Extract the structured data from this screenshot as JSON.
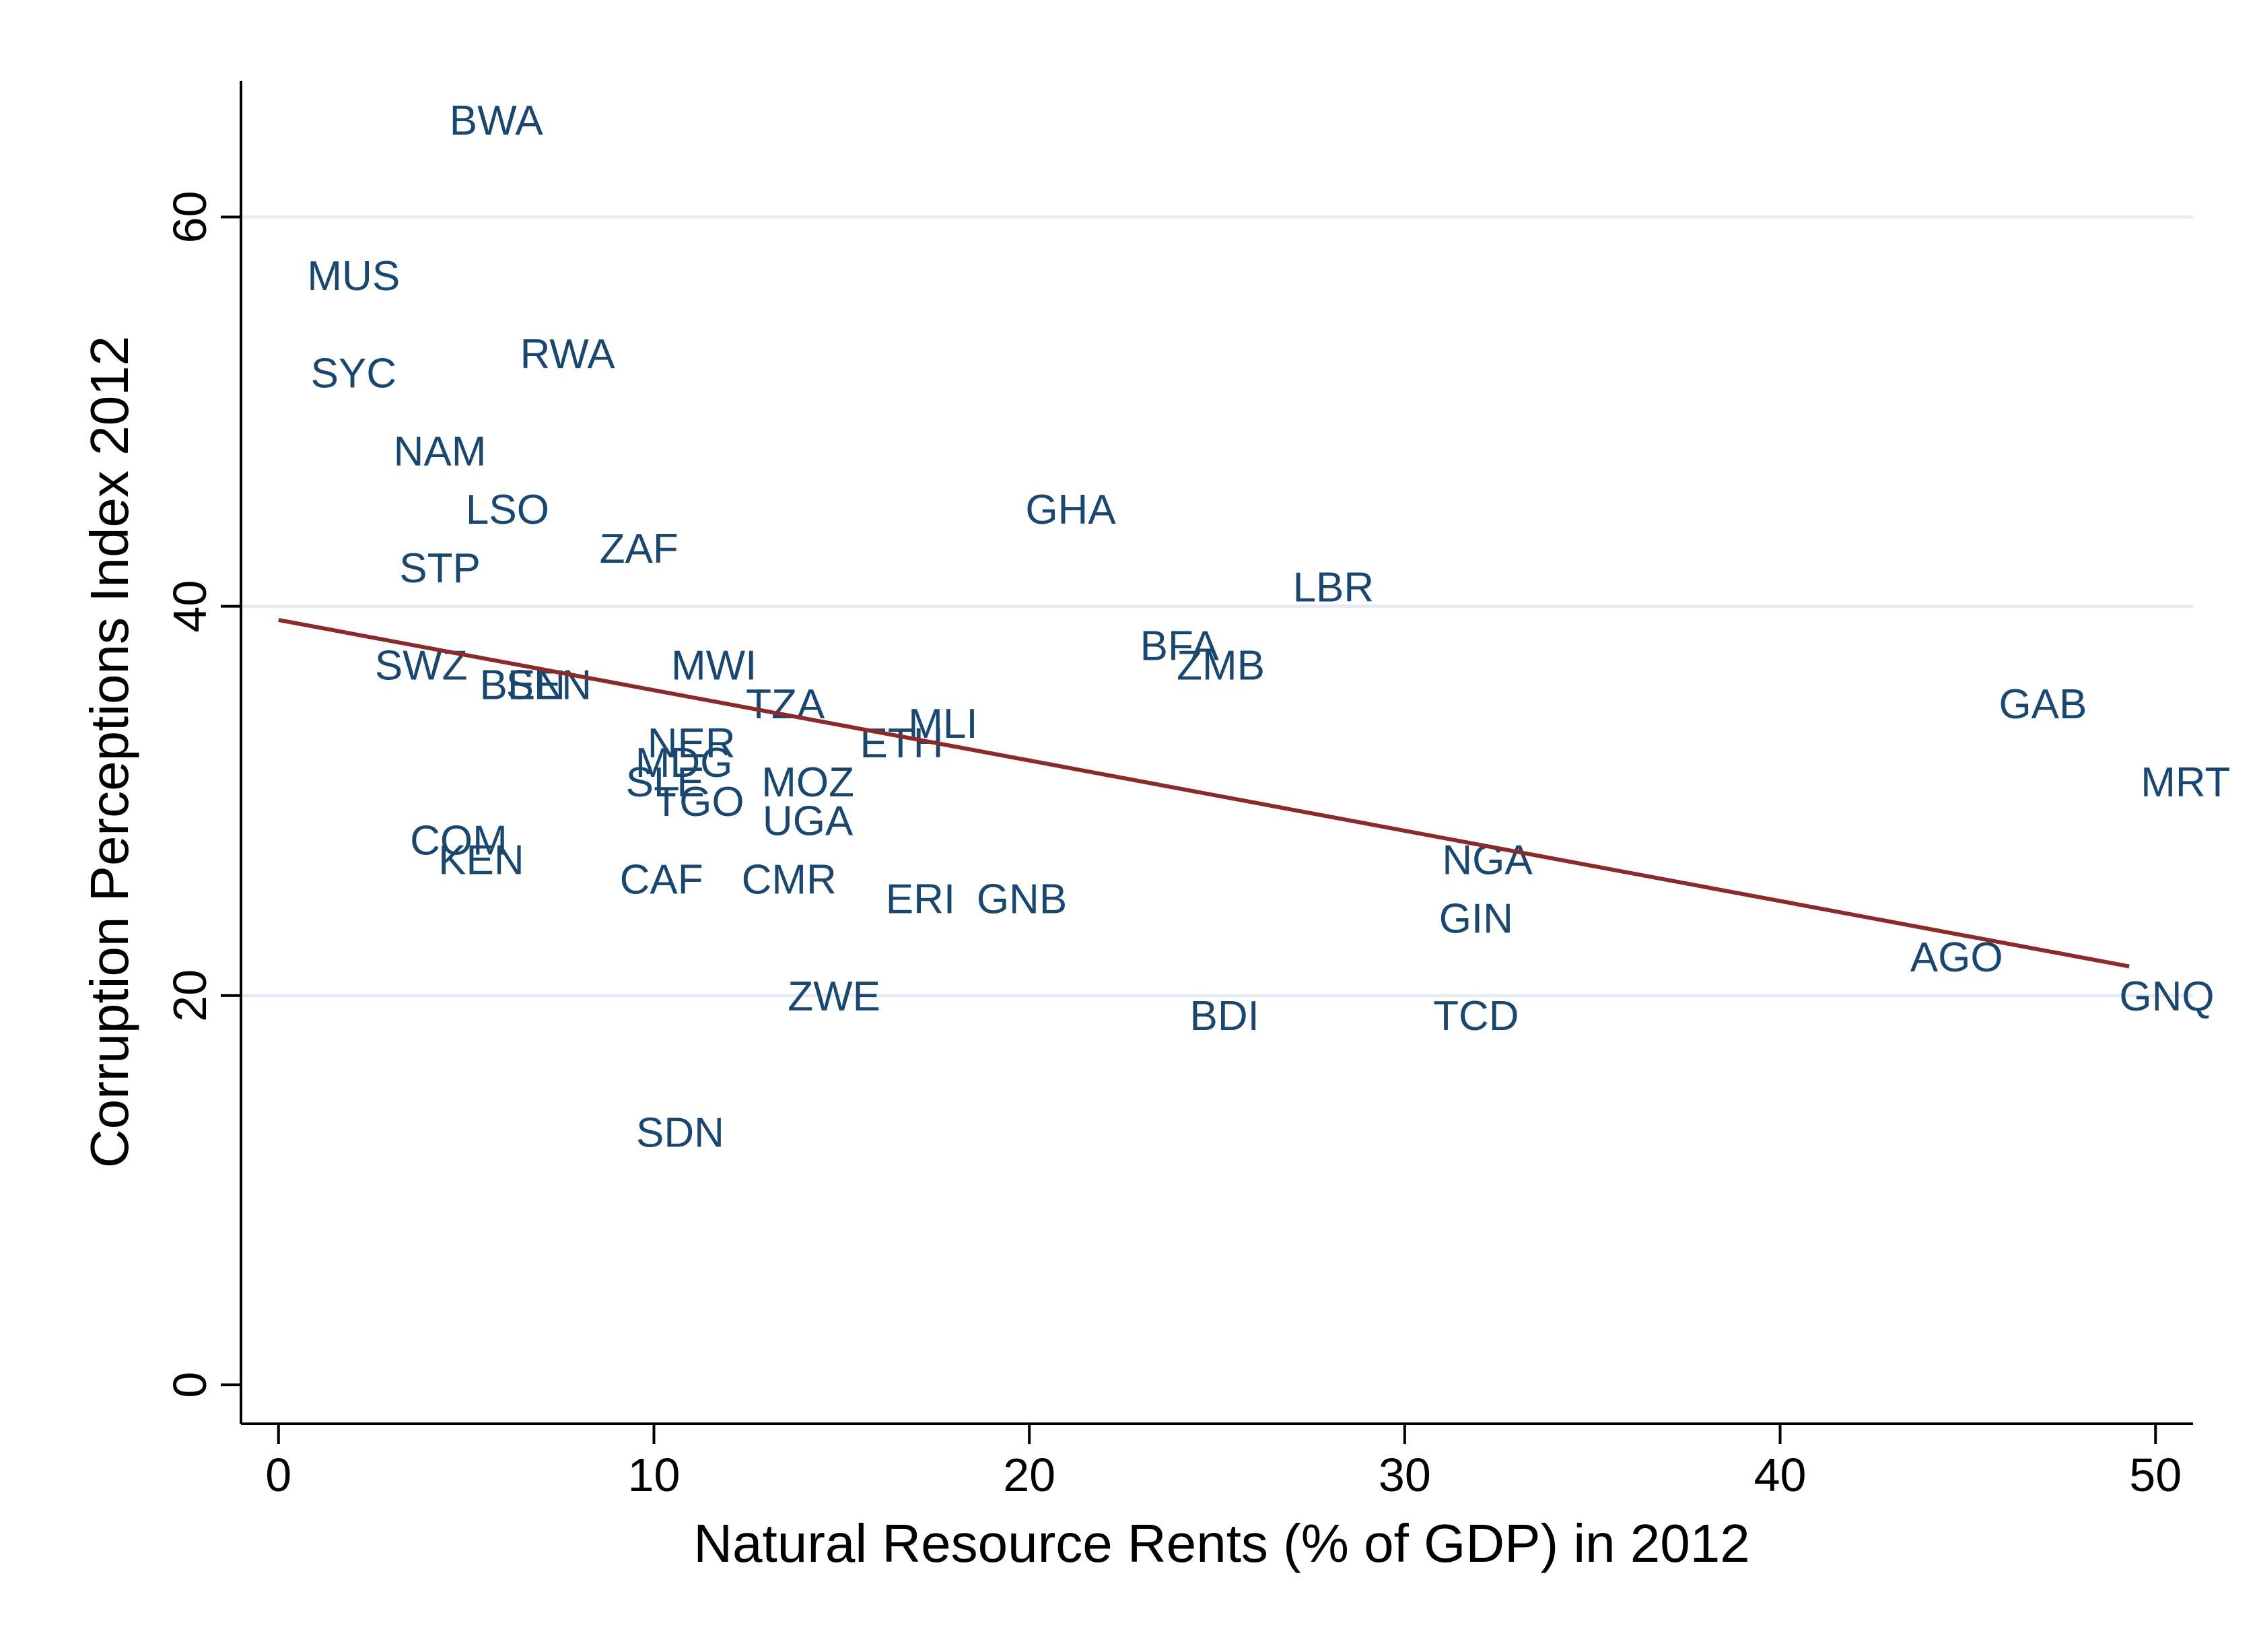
{
  "chart_data": {
    "type": "scatter",
    "title": "",
    "xlabel": "Natural Resource Rents (% of GDP) in 2012",
    "ylabel": "Corruption Perceptions Index 2012",
    "xlim": [
      -1,
      51
    ],
    "ylim": [
      -2,
      67
    ],
    "x_ticks": [
      0,
      10,
      20,
      30,
      40,
      50
    ],
    "y_ticks": [
      0,
      20,
      40,
      60
    ],
    "grid": "horizontal",
    "marker": "country-code labels",
    "colors": {
      "labels": "#1a476f",
      "fit_line": "#8b2a2a",
      "grid": "#e6ecf1",
      "axes": "#000000"
    },
    "points": [
      {
        "label": "BWA",
        "x": 5.8,
        "y": 65
      },
      {
        "label": "MUS",
        "x": 2.0,
        "y": 57
      },
      {
        "label": "SYC",
        "x": 2.0,
        "y": 52
      },
      {
        "label": "RWA",
        "x": 7.7,
        "y": 53
      },
      {
        "label": "NAM",
        "x": 4.3,
        "y": 48
      },
      {
        "label": "LSO",
        "x": 6.1,
        "y": 45
      },
      {
        "label": "GHA",
        "x": 21.1,
        "y": 45
      },
      {
        "label": "ZAF",
        "x": 9.6,
        "y": 43
      },
      {
        "label": "STP",
        "x": 4.3,
        "y": 42
      },
      {
        "label": "LBR",
        "x": 28.1,
        "y": 41
      },
      {
        "label": "BFA",
        "x": 24.0,
        "y": 38
      },
      {
        "label": "ZMB",
        "x": 25.1,
        "y": 37
      },
      {
        "label": "SWZ",
        "x": 3.8,
        "y": 37
      },
      {
        "label": "MWI",
        "x": 11.6,
        "y": 37
      },
      {
        "label": "BEN",
        "x": 6.5,
        "y": 36
      },
      {
        "label": "SEN",
        "x": 7.2,
        "y": 36
      },
      {
        "label": "TZA",
        "x": 13.5,
        "y": 35
      },
      {
        "label": "GAB",
        "x": 47.0,
        "y": 35
      },
      {
        "label": "MLI",
        "x": 17.7,
        "y": 34
      },
      {
        "label": "ETH",
        "x": 16.6,
        "y": 33
      },
      {
        "label": "NER",
        "x": 11.0,
        "y": 33
      },
      {
        "label": "MDG",
        "x": 10.8,
        "y": 32
      },
      {
        "label": "SLE",
        "x": 10.3,
        "y": 31
      },
      {
        "label": "MOZ",
        "x": 14.1,
        "y": 31
      },
      {
        "label": "MRT",
        "x": 50.8,
        "y": 31
      },
      {
        "label": "TGO",
        "x": 11.2,
        "y": 30
      },
      {
        "label": "UGA",
        "x": 14.1,
        "y": 29
      },
      {
        "label": "COM",
        "x": 4.8,
        "y": 28
      },
      {
        "label": "KEN",
        "x": 5.4,
        "y": 27
      },
      {
        "label": "NGA",
        "x": 32.2,
        "y": 27
      },
      {
        "label": "CAF",
        "x": 10.2,
        "y": 26
      },
      {
        "label": "CMR",
        "x": 13.6,
        "y": 26
      },
      {
        "label": "ERI",
        "x": 17.1,
        "y": 25
      },
      {
        "label": "GNB",
        "x": 19.8,
        "y": 25
      },
      {
        "label": "GIN",
        "x": 31.9,
        "y": 24
      },
      {
        "label": "AGO",
        "x": 44.7,
        "y": 22
      },
      {
        "label": "GNQ",
        "x": 50.3,
        "y": 20
      },
      {
        "label": "ZWE",
        "x": 14.8,
        "y": 20
      },
      {
        "label": "BDI",
        "x": 25.2,
        "y": 19
      },
      {
        "label": "TCD",
        "x": 31.9,
        "y": 19
      },
      {
        "label": "SDN",
        "x": 10.7,
        "y": 13
      }
    ],
    "fit_line": {
      "x": [
        0,
        49.3
      ],
      "y": [
        39.3,
        21.5
      ]
    }
  }
}
